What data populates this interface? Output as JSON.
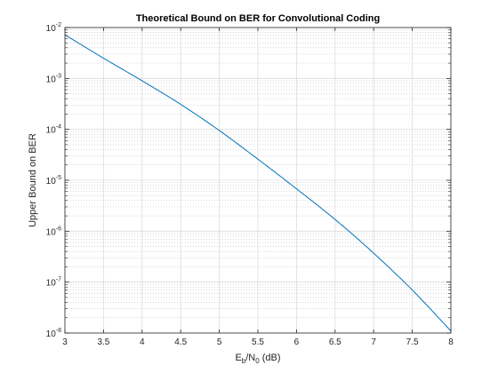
{
  "chart_data": {
    "type": "line",
    "title": "Theoretical Bound on BER for Convolutional Coding",
    "xlabel": {
      "base": "E",
      "sub1": "b",
      "mid": "/N",
      "sub2": "0",
      "tail": " (dB)"
    },
    "ylabel": "Upper Bound on BER",
    "xlim": [
      3,
      8
    ],
    "ylim": [
      1e-08,
      0.01
    ],
    "yscale": "log",
    "grid": true,
    "minor_grid": true,
    "x_ticks": [
      3,
      3.5,
      4,
      4.5,
      5,
      5.5,
      6,
      6.5,
      7,
      7.5,
      8
    ],
    "x_tick_labels": [
      "3",
      "3.5",
      "4",
      "4.5",
      "5",
      "5.5",
      "6",
      "6.5",
      "7",
      "7.5",
      "8"
    ],
    "y_tick_exponents": [
      -8,
      -7,
      -6,
      -5,
      -4,
      -3,
      -2
    ],
    "y_tick_base": "10",
    "series": [
      {
        "color": "#0072bd",
        "x": [
          3,
          3.5,
          4,
          4.5,
          5,
          5.5,
          6,
          6.5,
          7,
          7.5,
          8
        ],
        "y": [
          0.0072,
          0.0025,
          0.0009,
          0.00031,
          9.5e-05,
          2.6e-05,
          6.8e-06,
          1.7e-06,
          3.7e-07,
          7e-08,
          1.1e-08
        ]
      }
    ]
  }
}
